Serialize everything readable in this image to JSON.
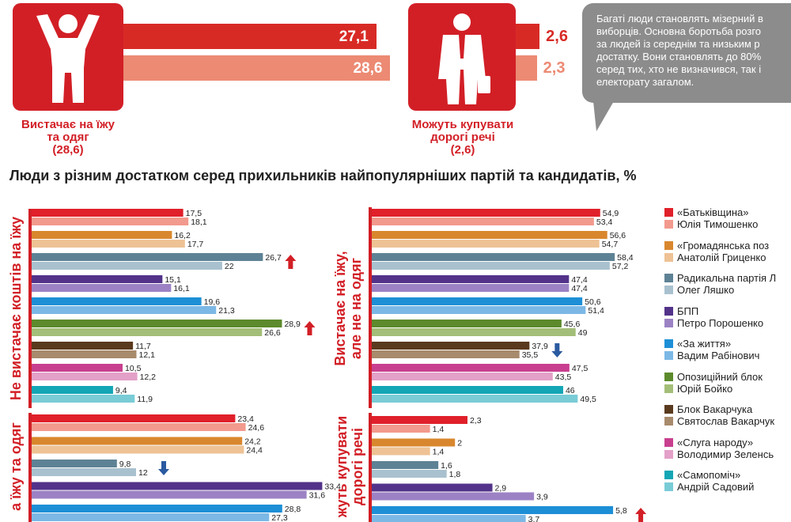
{
  "top": {
    "left": {
      "caption": [
        "Вистачає на їжу",
        "та одяг",
        "(28,6)"
      ],
      "bars": [
        {
          "value": 27.1,
          "label": "27,1",
          "color": "#d82a25"
        },
        {
          "value": 28.6,
          "label": "28,6",
          "color": "#ec8a73"
        }
      ]
    },
    "right": {
      "caption": [
        "Можуть купувати",
        "дорогі речі",
        "(2,6)"
      ],
      "bars": [
        {
          "value": 2.6,
          "label": "2,6",
          "color": "#d82a25"
        },
        {
          "value": 2.3,
          "label": "2,3",
          "color": "#ec8a73"
        }
      ]
    },
    "bubble_lines": [
      "Багаті люди становлять мізерний в",
      "виборців. Основна боротьба розго",
      "за людей із середнім та низьким р",
      "достатку. Вони становлять до 80%",
      "серед тих, хто не визначився, так і",
      "електорату загалом."
    ]
  },
  "chart_title": "Люди з різним достатком серед прихильників найпопулярніших партій та кандидатів, %",
  "colors": {
    "accent": "#d21f26",
    "arrow_up": "#d21f26",
    "arrow_down": "#2a5aa0",
    "pairs": [
      [
        "#e0202a",
        "#f29a8d"
      ],
      [
        "#d9872e",
        "#eec295"
      ],
      [
        "#5e8295",
        "#a9c1cf"
      ],
      [
        "#53338a",
        "#9c82c4"
      ],
      [
        "#1d8fd6",
        "#7cb8e6"
      ],
      [
        "#5c8a2c",
        "#a3be78"
      ],
      [
        "#5a3a1e",
        "#a88a6c"
      ],
      [
        "#c83f8f",
        "#e3a0c8"
      ],
      [
        "#13a6b5",
        "#79ccd6"
      ]
    ]
  },
  "legend": [
    {
      "party": "«Батьківщина»",
      "candidate": "Юлія Тимошенко"
    },
    {
      "party": "«Громадянська поз",
      "candidate": "Анатолій Гриценко"
    },
    {
      "party": "Радикальна партія Л",
      "candidate": "Олег Ляшко"
    },
    {
      "party": "БПП",
      "candidate": "Петро Порошенко"
    },
    {
      "party": "«За життя»",
      "candidate": "Вадим Рабінович"
    },
    {
      "party": "Опозиційний блок",
      "candidate": "Юрій Бойко"
    },
    {
      "party": "Блок Вакарчука",
      "candidate": "Святослав Вакарчук"
    },
    {
      "party": "«Слуга народу»",
      "candidate": "Володимир Зеленсь"
    },
    {
      "party": "«Самопоміч»",
      "candidate": "Андрій Садовий"
    }
  ],
  "chart_data": [
    {
      "type": "bar",
      "panel_label": [
        "Не вистачає коштів на їжу"
      ],
      "pairs": [
        {
          "party": 17.5,
          "candidate": 18.1,
          "party_label": "17,5",
          "candidate_label": "18,1"
        },
        {
          "party": 16.2,
          "candidate": 17.7,
          "party_label": "16,2",
          "candidate_label": "17,7"
        },
        {
          "party": 26.7,
          "candidate": 22,
          "party_label": "26,7",
          "candidate_label": "22",
          "arrow": "up"
        },
        {
          "party": 15.1,
          "candidate": 16.1,
          "party_label": "15,1",
          "candidate_label": "16,1"
        },
        {
          "party": 19.6,
          "candidate": 21.3,
          "party_label": "19,6",
          "candidate_label": "21,3"
        },
        {
          "party": 28.9,
          "candidate": 26.6,
          "party_label": "28,9",
          "candidate_label": "26,6",
          "arrow": "up"
        },
        {
          "party": 11.7,
          "candidate": 12.1,
          "party_label": "11,7",
          "candidate_label": "12,1"
        },
        {
          "party": 10.5,
          "candidate": 12.2,
          "party_label": "10,5",
          "candidate_label": "12,2"
        },
        {
          "party": 9.4,
          "candidate": 11.9,
          "party_label": "9,4",
          "candidate_label": "11,9"
        }
      ]
    },
    {
      "type": "bar",
      "panel_label": [
        "Вистачає на їжу,",
        "але не на одяг"
      ],
      "pairs": [
        {
          "party": 54.9,
          "candidate": 53.4,
          "party_label": "54,9",
          "candidate_label": "53,4"
        },
        {
          "party": 56.6,
          "candidate": 54.7,
          "party_label": "56,6",
          "candidate_label": "54,7"
        },
        {
          "party": 58.4,
          "candidate": 57.2,
          "party_label": "58,4",
          "candidate_label": "57,2"
        },
        {
          "party": 47.4,
          "candidate": 47.4,
          "party_label": "47,4",
          "candidate_label": "47,4"
        },
        {
          "party": 50.6,
          "candidate": 51.4,
          "party_label": "50,6",
          "candidate_label": "51,4"
        },
        {
          "party": 45.6,
          "candidate": 49,
          "party_label": "45,6",
          "candidate_label": "49"
        },
        {
          "party": 37.9,
          "candidate": 35.5,
          "party_label": "37,9",
          "candidate_label": "35,5",
          "arrow": "down"
        },
        {
          "party": 47.5,
          "candidate": 43.5,
          "party_label": "47,5",
          "candidate_label": "43,5"
        },
        {
          "party": 46,
          "candidate": 49.5,
          "party_label": "46",
          "candidate_label": "49,5"
        }
      ]
    },
    {
      "type": "bar",
      "panel_label": [
        "а їжу та одяг"
      ],
      "pairs": [
        {
          "party": 23.4,
          "candidate": 24.6,
          "party_label": "23,4",
          "candidate_label": "24,6"
        },
        {
          "party": 24.2,
          "candidate": 24.4,
          "party_label": "24,2",
          "candidate_label": "24,4"
        },
        {
          "party": 9.8,
          "candidate": 12,
          "party_label": "9,8",
          "candidate_label": "12",
          "arrow": "down"
        },
        {
          "party": 33.4,
          "candidate": 31.6,
          "party_label": "33,4",
          "candidate_label": "31,6"
        },
        {
          "party": 28.8,
          "candidate": 27.3,
          "party_label": "28,8",
          "candidate_label": "27,3"
        }
      ]
    },
    {
      "type": "bar",
      "panel_label": [
        "жуть купувати",
        "дорогі речі"
      ],
      "pairs": [
        {
          "party": 2.3,
          "candidate": 1.4,
          "party_label": "2,3",
          "candidate_label": "1,4"
        },
        {
          "party": 2,
          "candidate": 1.4,
          "party_label": "2",
          "candidate_label": "1,4"
        },
        {
          "party": 1.6,
          "candidate": 1.8,
          "party_label": "1,6",
          "candidate_label": "1,8"
        },
        {
          "party": 2.9,
          "candidate": 3.9,
          "party_label": "2,9",
          "candidate_label": "3,9"
        },
        {
          "party": 5.8,
          "candidate": 3.7,
          "party_label": "5,8",
          "candidate_label": "3,7",
          "arrow": "up"
        }
      ]
    }
  ]
}
